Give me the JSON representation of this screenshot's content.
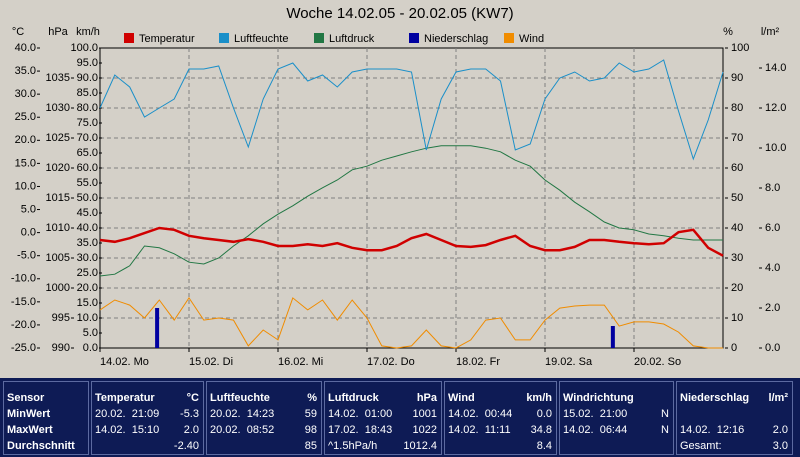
{
  "chart_data": {
    "type": "multi-axis-line",
    "title": "Woche 14.02.05 - 20.02.05 (KW7)",
    "ylabel": "°C",
    "y2label": "hPa",
    "y3label": "km/h",
    "y4label": "%",
    "y5label": "l/m²",
    "ylim": [
      -25,
      40
    ],
    "yticks": [
      {
        "value": 40,
        "label": "40.0"
      },
      {
        "value": 35,
        "label": "35.0"
      },
      {
        "value": 30,
        "label": "30.0"
      },
      {
        "value": 25,
        "label": "25.0"
      },
      {
        "value": 20,
        "label": "20.0"
      },
      {
        "value": 15,
        "label": "15.0"
      },
      {
        "value": 10,
        "label": "10.0"
      },
      {
        "value": 5,
        "label": "5.0"
      },
      {
        "value": 0,
        "label": "0.0"
      },
      {
        "value": -5,
        "label": "-5.0"
      },
      {
        "value": -10,
        "label": "-10.0"
      },
      {
        "value": -15,
        "label": "-15.0"
      },
      {
        "value": -20,
        "label": "-20.0"
      },
      {
        "value": -25,
        "label": "-25.0"
      }
    ],
    "y2lim": [
      990,
      1040
    ],
    "y2ticks": [
      1035,
      1030,
      1025,
      1020,
      1015,
      1010,
      1005,
      1000,
      995,
      990
    ],
    "y3lim": [
      0,
      100
    ],
    "y3ticks": [
      {
        "value": 100,
        "label": "100.0"
      },
      {
        "value": 95,
        "label": "95.0"
      },
      {
        "value": 90,
        "label": "90.0"
      },
      {
        "value": 85,
        "label": "85.0"
      },
      {
        "value": 80,
        "label": "80.0"
      },
      {
        "value": 75,
        "label": "75.0"
      },
      {
        "value": 70,
        "label": "70.0"
      },
      {
        "value": 65,
        "label": "65.0"
      },
      {
        "value": 60,
        "label": "60.0"
      },
      {
        "value": 55,
        "label": "55.0"
      },
      {
        "value": 50,
        "label": "50.0"
      },
      {
        "value": 45,
        "label": "45.0"
      },
      {
        "value": 40,
        "label": "40.0"
      },
      {
        "value": 35,
        "label": "35.0"
      },
      {
        "value": 30,
        "label": "30.0"
      },
      {
        "value": 25,
        "label": "25.0"
      },
      {
        "value": 20,
        "label": "20.0"
      },
      {
        "value": 15,
        "label": "15.0"
      },
      {
        "value": 10,
        "label": "10.0"
      },
      {
        "value": 5,
        "label": "5.0"
      },
      {
        "value": 0,
        "label": "0.0"
      }
    ],
    "y4lim": [
      0,
      100
    ],
    "y4ticks": [
      100,
      90,
      80,
      70,
      60,
      50,
      40,
      30,
      20,
      10,
      0
    ],
    "y5lim": [
      0,
      15
    ],
    "y5ticks": [
      {
        "value": 14,
        "label": "14.0"
      },
      {
        "value": 12,
        "label": "12.0"
      },
      {
        "value": 10,
        "label": "10.0"
      },
      {
        "value": 8,
        "label": "8.0"
      },
      {
        "value": 6,
        "label": "6.0"
      },
      {
        "value": 4,
        "label": "4.0"
      },
      {
        "value": 2,
        "label": "2.0"
      },
      {
        "value": 0,
        "label": "0.0"
      }
    ],
    "xlim": [
      0,
      168
    ],
    "xticks": [
      {
        "value": 0,
        "label": "14.02. Mo"
      },
      {
        "value": 24,
        "label": "15.02. Di"
      },
      {
        "value": 48,
        "label": "16.02. Mi"
      },
      {
        "value": 72,
        "label": "17.02. Do"
      },
      {
        "value": 96,
        "label": "18.02. Fr"
      },
      {
        "value": 120,
        "label": "19.02. Sa"
      },
      {
        "value": 144,
        "label": "20.02. So"
      }
    ],
    "grid": true,
    "x": [
      0,
      4,
      8,
      12,
      16,
      20,
      24,
      28,
      32,
      36,
      40,
      44,
      48,
      52,
      56,
      60,
      64,
      68,
      72,
      76,
      80,
      84,
      88,
      92,
      96,
      100,
      104,
      108,
      112,
      116,
      120,
      124,
      128,
      132,
      136,
      140,
      144,
      148,
      152,
      156,
      160,
      164,
      168
    ],
    "series": [
      {
        "name": "Temperatur",
        "type": "line",
        "axis": "y",
        "color": "#d00000",
        "values": [
          -1.6,
          -2.0,
          -1.2,
          -0.1,
          1.0,
          0.6,
          -0.7,
          -1.2,
          -1.6,
          -2.0,
          -1.4,
          -2.0,
          -2.9,
          -2.9,
          -2.5,
          -2.9,
          -2.3,
          -3.3,
          -3.8,
          -3.8,
          -2.9,
          -1.2,
          -0.3,
          -1.6,
          -2.9,
          -3.1,
          -2.7,
          -1.6,
          -0.7,
          -2.9,
          -3.8,
          -3.8,
          -3.1,
          -1.6,
          -1.6,
          -2.0,
          -2.3,
          -2.5,
          -2.3,
          0.1,
          0.6,
          -3.3,
          -5.0
        ]
      },
      {
        "name": "Luftfeuchte",
        "type": "line",
        "axis": "y4",
        "color": "#1a8fc9",
        "values": [
          80,
          91,
          87,
          77,
          80,
          83,
          93,
          93,
          94,
          80,
          67,
          83,
          93,
          95,
          89,
          91,
          87,
          92,
          93,
          93,
          93,
          92,
          66,
          83,
          92,
          93,
          93,
          89,
          66,
          68,
          83,
          90,
          92,
          89,
          90,
          95,
          92,
          93,
          96,
          79,
          63,
          76,
          92
        ]
      },
      {
        "name": "Luftdruck",
        "type": "line",
        "axis": "y2",
        "color": "#227744",
        "values": [
          1002.0,
          1002.3,
          1003.7,
          1007.0,
          1006.7,
          1005.7,
          1004.3,
          1004.0,
          1005.0,
          1007.0,
          1008.7,
          1010.7,
          1012.3,
          1013.7,
          1015.3,
          1016.7,
          1018.0,
          1019.7,
          1020.3,
          1021.3,
          1022.0,
          1022.7,
          1023.3,
          1023.7,
          1023.7,
          1023.7,
          1023.3,
          1022.7,
          1021.3,
          1020.3,
          1018.0,
          1016.3,
          1014.3,
          1012.7,
          1011.0,
          1010.0,
          1009.7,
          1009.0,
          1008.7,
          1008.3,
          1008.0,
          1008.0,
          1008.0
        ]
      },
      {
        "name": "Niederschlag",
        "type": "bar",
        "axis": "y5",
        "color": "#0000a0",
        "x": [
          15.4,
          138.3
        ],
        "values": [
          2.0,
          1.1
        ]
      },
      {
        "name": "Wind",
        "type": "line",
        "axis": "y3",
        "color": "#f08c00",
        "values": [
          12.7,
          16.0,
          14.3,
          10.0,
          16.0,
          9.3,
          16.7,
          9.3,
          10.0,
          9.3,
          0.7,
          6.0,
          2.7,
          16.7,
          12.7,
          16.0,
          9.3,
          16.0,
          10.0,
          0.7,
          0.0,
          0.7,
          6.0,
          0.7,
          0.0,
          2.7,
          9.3,
          10.0,
          2.7,
          2.7,
          9.3,
          13.3,
          14.0,
          14.3,
          14.3,
          7.3,
          8.7,
          8.7,
          8.0,
          5.3,
          0.7,
          0.0,
          0.0
        ]
      }
    ]
  },
  "table": {
    "sensor_header": "Sensor",
    "row_labels": [
      "MinWert",
      "MaxWert",
      "Durchschnitt"
    ],
    "columns": [
      {
        "title": "Temperatur",
        "unit": "°C",
        "rows": [
          {
            "time": "20.02.  21:09",
            "value": "-5.3"
          },
          {
            "time": "14.02.  15:10",
            "value": "2.0"
          },
          {
            "value": "-2.40"
          }
        ]
      },
      {
        "title": "Luftfeuchte",
        "unit": "%",
        "rows": [
          {
            "time": "20.02.  14:23",
            "value": "59"
          },
          {
            "time": "20.02.  08:52",
            "value": "98"
          },
          {
            "value": "85"
          }
        ]
      },
      {
        "title": "Luftdruck",
        "unit": "hPa",
        "rows": [
          {
            "time": "14.02.  01:00",
            "value": "1001"
          },
          {
            "time": "17.02.  18:43",
            "value": "1022"
          },
          {
            "time": "^1.5hPa/h",
            "value": "1012.4"
          }
        ]
      },
      {
        "title": "Wind",
        "unit": "km/h",
        "rows": [
          {
            "time": "14.02.  00:44",
            "value": "0.0"
          },
          {
            "time": "14.02.  11:11",
            "value": "34.8"
          },
          {
            "value": "8.4"
          }
        ]
      },
      {
        "title": "Windrichtung",
        "rows": [
          {
            "time": "15.02.  21:00",
            "value": "N"
          },
          {
            "time": "14.02.  06:44",
            "value": "N"
          },
          null
        ]
      },
      {
        "title": "Niederschlag",
        "unit": "l/m²",
        "rows": [
          null,
          {
            "time": "14.02.  12:16",
            "value": "2.0"
          },
          {
            "time": "Gesamt:",
            "value": "3.0"
          }
        ]
      }
    ]
  }
}
